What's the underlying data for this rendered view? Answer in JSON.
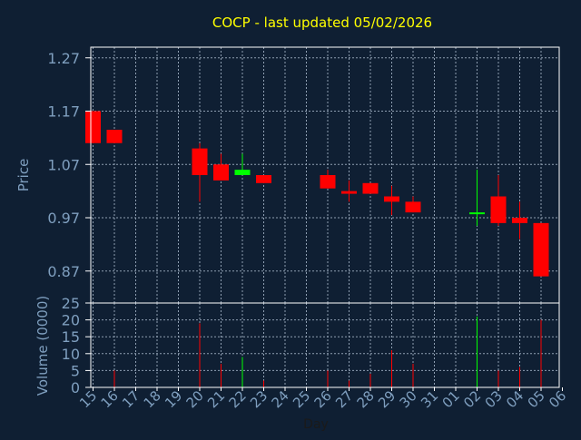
{
  "title": "COCP - last updated 05/02/2026",
  "colors": {
    "background": "#0f1f33",
    "title": "#ffff00",
    "axis_text": "#7f9fbf",
    "frame": "#ffffff",
    "grid": "#8f9fb2",
    "down": "#ff0000",
    "up": "#00ff00"
  },
  "chart_data": [
    {
      "type": "candlestick",
      "ylabel": "Price",
      "ylim": [
        0.81,
        1.29
      ],
      "yticks": [
        "1.27",
        "1.17",
        "1.07",
        "0.97",
        "0.87"
      ],
      "grid": true,
      "candles": [
        {
          "day": "15",
          "open": 1.17,
          "high": 1.17,
          "low": 1.11,
          "close": 1.11
        },
        {
          "day": "16",
          "open": 1.135,
          "high": 1.135,
          "low": 1.11,
          "close": 1.11
        },
        {
          "day": "20",
          "open": 1.1,
          "high": 1.11,
          "low": 1.0,
          "close": 1.05
        },
        {
          "day": "21",
          "open": 1.07,
          "high": 1.09,
          "low": 1.04,
          "close": 1.04
        },
        {
          "day": "22",
          "open": 1.05,
          "high": 1.09,
          "low": 1.05,
          "close": 1.06
        },
        {
          "day": "23",
          "open": 1.05,
          "high": 1.05,
          "low": 1.035,
          "close": 1.035
        },
        {
          "day": "26",
          "open": 1.05,
          "high": 1.06,
          "low": 1.025,
          "close": 1.025
        },
        {
          "day": "27",
          "open": 1.02,
          "high": 1.04,
          "low": 1.0,
          "close": 1.015
        },
        {
          "day": "28",
          "open": 1.035,
          "high": 1.035,
          "low": 1.015,
          "close": 1.015
        },
        {
          "day": "29",
          "open": 1.01,
          "high": 1.03,
          "low": 0.975,
          "close": 1.0
        },
        {
          "day": "30",
          "open": 1.0,
          "high": 1.01,
          "low": 0.98,
          "close": 0.98
        },
        {
          "day": "02",
          "open": 0.98,
          "high": 1.06,
          "low": 0.955,
          "close": 0.98
        },
        {
          "day": "03",
          "open": 1.01,
          "high": 1.05,
          "low": 0.955,
          "close": 0.96
        },
        {
          "day": "04",
          "open": 0.97,
          "high": 1.0,
          "low": 0.93,
          "close": 0.96
        },
        {
          "day": "05",
          "open": 0.96,
          "high": 0.96,
          "low": 0.86,
          "close": 0.86
        }
      ]
    },
    {
      "type": "bar",
      "ylabel": "Volume (0000)",
      "xlabel": "Day",
      "ylim": [
        0,
        25
      ],
      "yticks": [
        "25",
        "20",
        "15",
        "10",
        "5",
        "0"
      ],
      "categories": [
        "15",
        "16",
        "17",
        "18",
        "19",
        "20",
        "21",
        "22",
        "23",
        "24",
        "25",
        "26",
        "27",
        "28",
        "29",
        "30",
        "31",
        "01",
        "02",
        "03",
        "04",
        "05",
        "06"
      ],
      "values": [
        0,
        5,
        0,
        0,
        0,
        19,
        7,
        9,
        2,
        0,
        0,
        5,
        2,
        4,
        11,
        7,
        0,
        0,
        21,
        5,
        6,
        20,
        0
      ],
      "directions": [
        "down",
        "down",
        "",
        "",
        "",
        "down",
        "down",
        "up",
        "down",
        "",
        "",
        "down",
        "down",
        "down",
        "down",
        "down",
        "",
        "",
        "up",
        "down",
        "down",
        "down",
        ""
      ]
    }
  ]
}
